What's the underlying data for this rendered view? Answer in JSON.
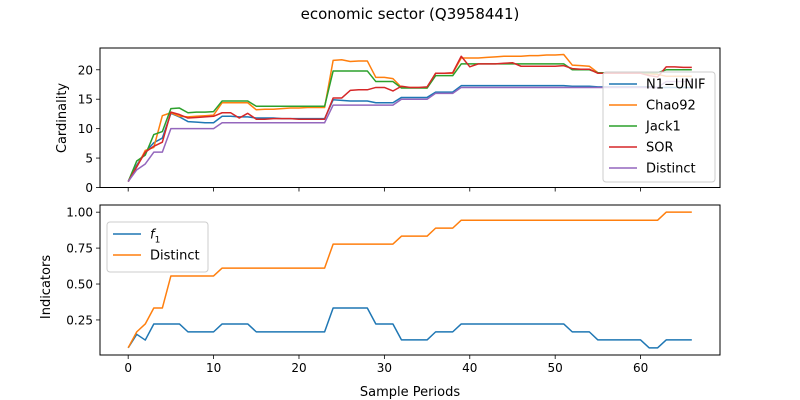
{
  "figure": {
    "title": "economic sector (Q3958441)"
  },
  "colors": {
    "blue": "#1f77b4",
    "orange": "#ff7f0e",
    "green": "#2ca02c",
    "red": "#d62728",
    "purple": "#9467bd"
  },
  "chart_data": [
    {
      "type": "line",
      "title": "economic sector (Q3958441)",
      "xlabel": "",
      "ylabel": "Cardinality",
      "xlim": [
        -3.3,
        69.3
      ],
      "ylim": [
        0,
        23.7
      ],
      "xticks": [
        0,
        10,
        20,
        30,
        40,
        50,
        60
      ],
      "xtick_labels_shown": false,
      "yticks": [
        0,
        5,
        10,
        15,
        20
      ],
      "ytick_labels": [
        "0",
        "5",
        "10",
        "15",
        "20"
      ],
      "grid": false,
      "legend_position": "right",
      "series": [
        {
          "name": "N1−UNIF",
          "color": "#1f77b4",
          "x": [
            0,
            1,
            2,
            3,
            4,
            5,
            6,
            7,
            8,
            9,
            10,
            11,
            12,
            13,
            14,
            15,
            16,
            17,
            18,
            19,
            20,
            21,
            22,
            23,
            24,
            25,
            26,
            27,
            28,
            29,
            30,
            31,
            32,
            33,
            34,
            35,
            36,
            37,
            38,
            39,
            40,
            41,
            42,
            43,
            44,
            45,
            46,
            47,
            48,
            49,
            50,
            51,
            52,
            53,
            54,
            55,
            56,
            57,
            58,
            59,
            60,
            61,
            62,
            63,
            64,
            65,
            66
          ],
          "y": [
            1,
            3.8,
            6,
            7.6,
            8.4,
            12.6,
            12,
            11.2,
            11.1,
            11,
            11,
            12.1,
            12.1,
            12,
            12,
            11.8,
            11.8,
            11.8,
            11.7,
            11.7,
            11.7,
            11.7,
            11.7,
            11.7,
            14.9,
            14.8,
            14.7,
            14.7,
            14.7,
            14.4,
            14.4,
            14.4,
            15.3,
            15.3,
            15.3,
            15.3,
            16.2,
            16.2,
            16.2,
            17.3,
            17.3,
            17.3,
            17.3,
            17.3,
            17.3,
            17.3,
            17.3,
            17.3,
            17.3,
            17.3,
            17.3,
            17.3,
            17.2,
            17.2,
            17.2,
            17.1,
            17.1,
            17.1,
            17.1,
            17.1,
            17.1,
            17.1,
            17.0,
            17.0,
            17.0,
            17.0,
            17.0
          ]
        },
        {
          "name": "Chao92",
          "color": "#ff7f0e",
          "x": [
            0,
            1,
            2,
            3,
            4,
            5,
            6,
            7,
            8,
            9,
            10,
            11,
            12,
            13,
            14,
            15,
            16,
            17,
            18,
            19,
            20,
            21,
            22,
            23,
            24,
            25,
            26,
            27,
            28,
            29,
            30,
            31,
            32,
            33,
            34,
            35,
            36,
            37,
            38,
            39,
            40,
            41,
            42,
            43,
            44,
            45,
            46,
            47,
            48,
            49,
            50,
            51,
            52,
            53,
            54,
            55,
            56,
            57,
            58,
            59,
            60,
            61,
            62,
            63,
            64,
            65,
            66
          ],
          "y": [
            1,
            3.5,
            6.3,
            6.8,
            12.2,
            12.7,
            12.1,
            12,
            12.1,
            12.2,
            12.3,
            14.4,
            14.4,
            14.4,
            14.4,
            13.2,
            13.3,
            13.3,
            13.4,
            13.5,
            13.5,
            13.6,
            13.6,
            13.6,
            21.6,
            21.7,
            21.4,
            21.5,
            21.5,
            18.7,
            18.7,
            18.5,
            17,
            17,
            17,
            16.9,
            19.4,
            19.4,
            19.4,
            22,
            22,
            22,
            22.1,
            22.2,
            22.3,
            22.3,
            22.3,
            22.4,
            22.4,
            22.5,
            22.5,
            22.6,
            20.8,
            20.7,
            20.6,
            19.5,
            19.5,
            19.4,
            19.4,
            19.4,
            19.5,
            19.3,
            19.2,
            18.9,
            18.9,
            18.9,
            18.9
          ]
        },
        {
          "name": "Jack1",
          "color": "#2ca02c",
          "x": [
            0,
            1,
            2,
            3,
            4,
            5,
            6,
            7,
            8,
            9,
            10,
            11,
            12,
            13,
            14,
            15,
            16,
            17,
            18,
            19,
            20,
            21,
            22,
            23,
            24,
            25,
            26,
            27,
            28,
            29,
            30,
            31,
            32,
            33,
            34,
            35,
            36,
            37,
            38,
            39,
            40,
            41,
            42,
            43,
            44,
            45,
            46,
            47,
            48,
            49,
            50,
            51,
            52,
            53,
            54,
            55,
            56,
            57,
            58,
            59,
            60,
            61,
            62,
            63,
            64,
            65,
            66
          ],
          "y": [
            1,
            4.5,
            5.5,
            9,
            9.5,
            13.4,
            13.5,
            12.7,
            12.8,
            12.8,
            12.9,
            14.7,
            14.7,
            14.7,
            14.7,
            13.8,
            13.8,
            13.8,
            13.8,
            13.8,
            13.8,
            13.8,
            13.8,
            13.8,
            19.8,
            19.8,
            19.8,
            19.8,
            19.8,
            18,
            18,
            18,
            16.9,
            16.9,
            16.9,
            16.9,
            19,
            19,
            19,
            21,
            21,
            21,
            21,
            21,
            21,
            21,
            21,
            21,
            21,
            21,
            21,
            21,
            20,
            20,
            20,
            19.5,
            19.5,
            19.5,
            19.5,
            19.5,
            19.5,
            19.5,
            19.5,
            20,
            20,
            20,
            20
          ]
        },
        {
          "name": "SOR",
          "color": "#d62728",
          "x": [
            0,
            1,
            2,
            3,
            4,
            5,
            6,
            7,
            8,
            9,
            10,
            11,
            12,
            13,
            14,
            15,
            16,
            17,
            18,
            19,
            20,
            21,
            22,
            23,
            24,
            25,
            26,
            27,
            28,
            29,
            30,
            31,
            32,
            33,
            34,
            35,
            36,
            37,
            38,
            39,
            40,
            41,
            42,
            43,
            44,
            45,
            46,
            47,
            48,
            49,
            50,
            51,
            52,
            53,
            54,
            55,
            56,
            57,
            58,
            59,
            60,
            61,
            62,
            63,
            64,
            65,
            66
          ],
          "y": [
            1,
            3.5,
            6,
            7,
            7.7,
            12.8,
            12.4,
            11.8,
            11.9,
            12,
            12.1,
            12.7,
            12.7,
            11.8,
            12.6,
            11.6,
            11.6,
            11.7,
            11.7,
            11.7,
            11.6,
            11.6,
            11.6,
            11.6,
            15.2,
            15.2,
            16.5,
            16.6,
            16.6,
            17,
            17,
            16.4,
            17.2,
            17,
            17,
            17.1,
            19.4,
            19.4,
            19.5,
            22.3,
            20.5,
            21,
            21,
            21,
            21.1,
            21.2,
            20.6,
            20.6,
            20.6,
            20.6,
            20.6,
            20.7,
            20.2,
            20.1,
            20.1,
            19.4,
            19.4,
            19.4,
            19.4,
            19.4,
            19.4,
            19,
            18.8,
            20.5,
            20.5,
            20.4,
            20.4
          ]
        },
        {
          "name": "Distinct",
          "color": "#9467bd",
          "x": [
            0,
            1,
            2,
            3,
            4,
            5,
            6,
            7,
            8,
            9,
            10,
            11,
            12,
            13,
            14,
            15,
            16,
            17,
            18,
            19,
            20,
            21,
            22,
            23,
            24,
            25,
            26,
            27,
            28,
            29,
            30,
            31,
            32,
            33,
            34,
            35,
            36,
            37,
            38,
            39,
            40,
            41,
            42,
            43,
            44,
            45,
            46,
            47,
            48,
            49,
            50,
            51,
            52,
            53,
            54,
            55,
            56,
            57,
            58,
            59,
            60,
            61,
            62,
            63,
            64,
            65,
            66
          ],
          "y": [
            1,
            3,
            4,
            6,
            6,
            10,
            10,
            10,
            10,
            10,
            10,
            11,
            11,
            11,
            11,
            11,
            11,
            11,
            11,
            11,
            11,
            11,
            11,
            11,
            14,
            14,
            14,
            14,
            14,
            14,
            14,
            14,
            15,
            15,
            15,
            15,
            16,
            16,
            16,
            17,
            17,
            17,
            17,
            17,
            17,
            17,
            17,
            17,
            17,
            17,
            17,
            17,
            17,
            17,
            17,
            17,
            17,
            17,
            17,
            17,
            17,
            17,
            17,
            18,
            18,
            18,
            18
          ]
        }
      ]
    },
    {
      "type": "line",
      "title": "",
      "xlabel": "Sample Periods",
      "ylabel": "Indicators",
      "xlim": [
        -3.3,
        69.3
      ],
      "ylim": [
        0.006,
        1.05
      ],
      "xticks": [
        0,
        10,
        20,
        30,
        40,
        50,
        60
      ],
      "xtick_labels": [
        "0",
        "10",
        "20",
        "30",
        "40",
        "50",
        "60"
      ],
      "yticks": [
        0.25,
        0.5,
        0.75,
        1.0
      ],
      "ytick_labels": [
        "0.25",
        "0.50",
        "0.75",
        "1.00"
      ],
      "grid": false,
      "legend_position": "upper left",
      "series": [
        {
          "name": "f1",
          "legend_label_main": "f",
          "legend_label_sub": "1",
          "color": "#1f77b4",
          "x": [
            0,
            1,
            2,
            3,
            4,
            5,
            6,
            7,
            8,
            9,
            10,
            11,
            12,
            13,
            14,
            15,
            16,
            17,
            18,
            19,
            20,
            21,
            22,
            23,
            24,
            25,
            26,
            27,
            28,
            29,
            30,
            31,
            32,
            33,
            34,
            35,
            36,
            37,
            38,
            39,
            40,
            41,
            42,
            43,
            44,
            45,
            46,
            47,
            48,
            49,
            50,
            51,
            52,
            53,
            54,
            55,
            56,
            57,
            58,
            59,
            60,
            61,
            62,
            63,
            64,
            65,
            66
          ],
          "y": [
            0.056,
            0.15,
            0.11,
            0.222,
            0.222,
            0.222,
            0.222,
            0.167,
            0.167,
            0.167,
            0.167,
            0.222,
            0.222,
            0.222,
            0.222,
            0.167,
            0.167,
            0.167,
            0.167,
            0.167,
            0.167,
            0.167,
            0.167,
            0.167,
            0.333,
            0.333,
            0.333,
            0.333,
            0.333,
            0.222,
            0.222,
            0.222,
            0.111,
            0.111,
            0.111,
            0.111,
            0.167,
            0.167,
            0.167,
            0.222,
            0.222,
            0.222,
            0.222,
            0.222,
            0.222,
            0.222,
            0.222,
            0.222,
            0.222,
            0.222,
            0.222,
            0.222,
            0.167,
            0.167,
            0.167,
            0.111,
            0.111,
            0.111,
            0.111,
            0.111,
            0.111,
            0.056,
            0.056,
            0.111,
            0.111,
            0.111,
            0.111
          ]
        },
        {
          "name": "Distinct",
          "color": "#ff7f0e",
          "x": [
            0,
            1,
            2,
            3,
            4,
            5,
            6,
            7,
            8,
            9,
            10,
            11,
            12,
            13,
            14,
            15,
            16,
            17,
            18,
            19,
            20,
            21,
            22,
            23,
            24,
            25,
            26,
            27,
            28,
            29,
            30,
            31,
            32,
            33,
            34,
            35,
            36,
            37,
            38,
            39,
            40,
            41,
            42,
            43,
            44,
            45,
            46,
            47,
            48,
            49,
            50,
            51,
            52,
            53,
            54,
            55,
            56,
            57,
            58,
            59,
            60,
            61,
            62,
            63,
            64,
            65,
            66
          ],
          "y": [
            0.056,
            0.167,
            0.222,
            0.333,
            0.333,
            0.556,
            0.556,
            0.556,
            0.556,
            0.556,
            0.556,
            0.611,
            0.611,
            0.611,
            0.611,
            0.611,
            0.611,
            0.611,
            0.611,
            0.611,
            0.611,
            0.611,
            0.611,
            0.611,
            0.778,
            0.778,
            0.778,
            0.778,
            0.778,
            0.778,
            0.778,
            0.778,
            0.833,
            0.833,
            0.833,
            0.833,
            0.889,
            0.889,
            0.889,
            0.944,
            0.944,
            0.944,
            0.944,
            0.944,
            0.944,
            0.944,
            0.944,
            0.944,
            0.944,
            0.944,
            0.944,
            0.944,
            0.944,
            0.944,
            0.944,
            0.944,
            0.944,
            0.944,
            0.944,
            0.944,
            0.944,
            0.944,
            0.944,
            1.0,
            1.0,
            1.0,
            1.0
          ]
        }
      ]
    }
  ]
}
